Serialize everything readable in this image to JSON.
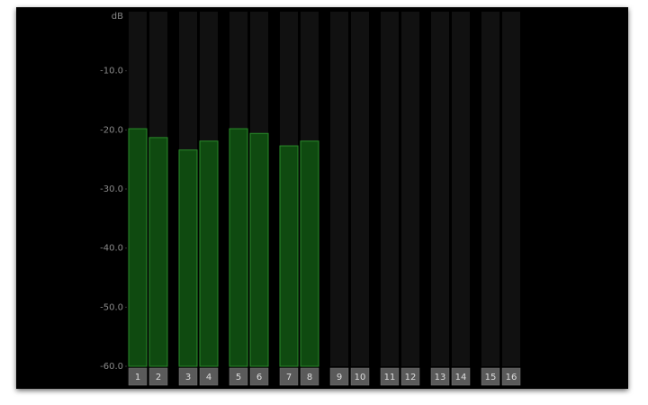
{
  "chart_data": {
    "type": "bar",
    "y_label": "dB",
    "categories": [
      "1",
      "2",
      "3",
      "4",
      "5",
      "6",
      "7",
      "8",
      "9",
      "10",
      "11",
      "12",
      "13",
      "14",
      "15",
      "16"
    ],
    "values": [
      -19.8,
      -21.3,
      -23.4,
      -21.9,
      -19.8,
      -20.6,
      -22.7,
      -21.9,
      null,
      null,
      null,
      null,
      null,
      null,
      null,
      null
    ],
    "color": "#0f4a10",
    "ylim": [
      -60,
      0
    ],
    "yticks": [
      {
        "value": -10,
        "label": "-10.0"
      },
      {
        "value": -20,
        "label": "-20.0"
      },
      {
        "value": -30,
        "label": "-30.0"
      },
      {
        "value": -40,
        "label": "-40.0"
      },
      {
        "value": -50,
        "label": "-50.0"
      },
      {
        "value": -60,
        "label": "-60.0"
      }
    ]
  }
}
